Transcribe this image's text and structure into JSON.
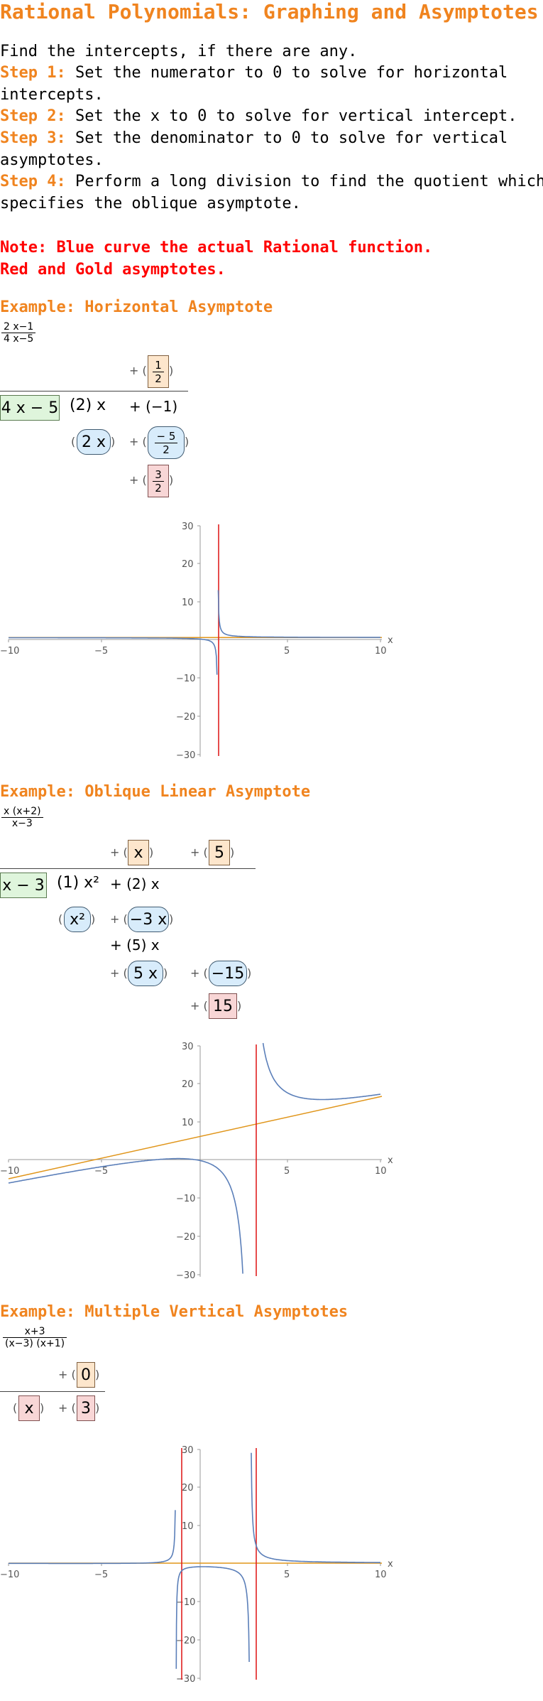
{
  "title": "Rational Polynomials: Graphing and Asymptotes",
  "intro": "Find the intercepts, if there are any.",
  "steps": [
    {
      "label": "Step 1:",
      "text": " Set the numerator to 0 to solve for horizontal\nintercepts."
    },
    {
      "label": "Step 2:",
      "text": " Set the x to 0 to solve for vertical intercept."
    },
    {
      "label": "Step 3:",
      "text": " Set the denominator to 0 to solve for vertical\nasymptotes."
    },
    {
      "label": "Step 4:",
      "text": " Perform a long division to find the quotient which\nspecifies the oblique asymptote."
    }
  ],
  "note": "Note: Blue curve the actual Rational function.\nRed and Gold asymptotes.",
  "colors": {
    "heading": "#f0841f",
    "note": "#ff0000",
    "function": "#5b7fb9",
    "vertical_asymptote": "#e02020",
    "other_asymptote": "#e0951a"
  },
  "examples": [
    {
      "heading": "Example: Horizontal Asymptote",
      "fraction": {
        "num": "2 x−1",
        "den": "4 x−5"
      },
      "division": {
        "quotient": "1/2",
        "divisor": "4 x − 5",
        "dividend": [
          "(2) x",
          "+ (−1)"
        ],
        "sub1": "2 x",
        "sub2": "−5/2",
        "remainder": "3/2"
      }
    },
    {
      "heading": "Example: Oblique Linear Asymptote",
      "fraction": {
        "num": "x (x+2)",
        "den": "x−3"
      },
      "division": {
        "quotient": [
          "x",
          "5"
        ],
        "divisor": "x − 3",
        "dividend": [
          "(1) x²",
          "+ (2) x"
        ],
        "sub1": [
          "x²",
          "−3 x"
        ],
        "mid": "+ (5) x",
        "sub2": [
          "5 x",
          "−15"
        ],
        "remainder": "15"
      }
    },
    {
      "heading": "Example: Multiple Vertical Asymptotes",
      "fraction": {
        "num": "x+3",
        "den": "(x−3) (x+1)"
      },
      "division": {
        "quotient": "0",
        "divisor": "x",
        "remainder": "3"
      }
    }
  ],
  "plot_ticks": {
    "x": [
      "−10",
      "−5",
      "5",
      "10"
    ],
    "y": [
      "30",
      "20",
      "10",
      "−10",
      "−20",
      "−30"
    ],
    "x_axis_label": "x"
  }
}
